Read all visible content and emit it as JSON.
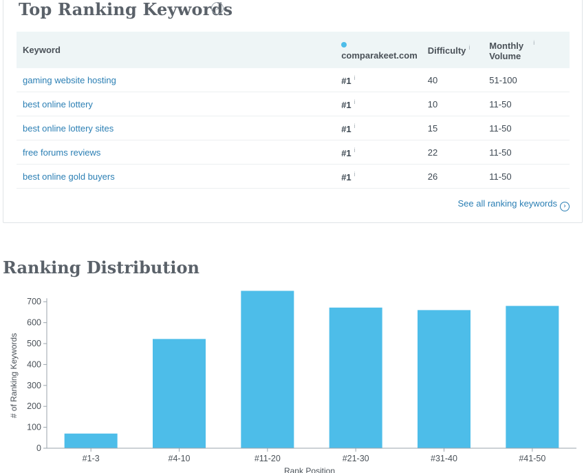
{
  "top_keywords": {
    "title": "Top Ranking Keywords",
    "columns": {
      "keyword": "Keyword",
      "site": "comparakeet.com",
      "difficulty": "Difficulty",
      "volume": "Monthly Volume"
    },
    "info_glyph": "i",
    "rows": [
      {
        "keyword": "gaming website hosting",
        "rank": "#1",
        "difficulty": "40",
        "volume": "51-100"
      },
      {
        "keyword": "best online lottery",
        "rank": "#1",
        "difficulty": "10",
        "volume": "11-50"
      },
      {
        "keyword": "best online lottery sites",
        "rank": "#1",
        "difficulty": "15",
        "volume": "11-50"
      },
      {
        "keyword": "free forums reviews",
        "rank": "#1",
        "difficulty": "22",
        "volume": "11-50"
      },
      {
        "keyword": "best online gold buyers",
        "rank": "#1",
        "difficulty": "26",
        "volume": "11-50"
      }
    ],
    "see_all_label": "See all ranking keywords",
    "colors": {
      "site_dot": "#4dbde9",
      "link": "#2b7fb4",
      "header_bg": "#eef5f6"
    },
    "icons": {
      "title_arrow": "chevron-right-circle-icon",
      "see_all_arrow": "chevron-right-circle-icon"
    }
  },
  "ranking_distribution": {
    "title": "Ranking Distribution"
  },
  "chart_data": {
    "type": "bar",
    "categories": [
      "#1-3",
      "#4-10",
      "#11-20",
      "#21-30",
      "#31-40",
      "#41-50"
    ],
    "values": [
      70,
      522,
      752,
      672,
      660,
      680
    ],
    "xlabel": "Rank Position",
    "ylabel": "# of Ranking Keywords",
    "ylim": [
      0,
      760
    ],
    "yticks": [
      0,
      100,
      200,
      300,
      400,
      500,
      600,
      700
    ],
    "color": "#4dbde9",
    "grid": false
  }
}
